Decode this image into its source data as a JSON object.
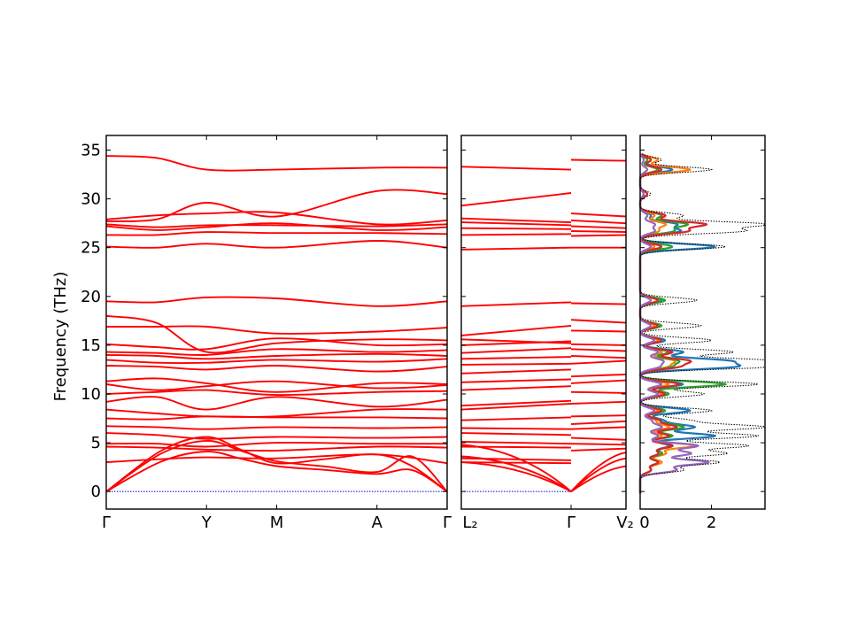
{
  "chart_data": {
    "type": "line",
    "ylabel": "Frequency (THz)",
    "ylim": [
      -1.8,
      36.5
    ],
    "yticks": [
      0,
      5,
      10,
      15,
      20,
      25,
      30,
      35
    ],
    "ytick_labels": [
      "0",
      "5",
      "10",
      "15",
      "20",
      "25",
      "30",
      "35"
    ],
    "colors": {
      "band": "#ff0000",
      "zero": "#0000cc",
      "dos_total": "#000000",
      "dos_partials": [
        "#1f77b4",
        "#ff7f0e",
        "#2ca02c",
        "#d62728",
        "#9467bd"
      ]
    },
    "panels": [
      {
        "id": "path1",
        "kpoints": [
          0,
          1,
          1.7,
          2.7,
          3.4
        ],
        "klabels": [
          "Γ",
          "Y",
          "M",
          "A",
          "Γ"
        ],
        "flat_bands": [
          [
            34.4,
            34.2,
            33.0,
            33.0,
            33.2,
            33.2
          ],
          [
            27.9,
            28.3,
            28.5,
            28.6,
            27.4,
            27.8
          ],
          [
            27.7,
            27.9,
            29.6,
            28.2,
            30.8,
            30.5
          ],
          [
            27.4,
            27.1,
            27.3,
            27.3,
            27.2,
            27.4
          ],
          [
            27.2,
            26.8,
            27.1,
            27.5,
            26.8,
            27.1
          ],
          [
            26.3,
            26.3,
            26.6,
            26.5,
            26.5,
            26.4
          ],
          [
            25.1,
            25.0,
            25.4,
            25.0,
            25.7,
            25.0
          ],
          [
            19.5,
            19.4,
            19.9,
            19.8,
            19.0,
            19.5
          ],
          [
            18.0,
            17.3,
            14.3,
            15.2,
            15.6,
            15.5
          ],
          [
            16.9,
            16.9,
            16.9,
            16.2,
            16.4,
            16.8
          ],
          [
            15.1,
            14.8,
            14.6,
            15.7,
            15.0,
            15.1
          ],
          [
            14.3,
            14.2,
            14.0,
            14.6,
            14.3,
            14.5
          ],
          [
            14.0,
            13.9,
            13.6,
            13.9,
            14.1,
            13.9
          ],
          [
            13.5,
            13.2,
            13.2,
            13.5,
            13.3,
            13.6
          ],
          [
            12.9,
            12.8,
            12.5,
            12.9,
            12.3,
            12.8
          ],
          [
            11.3,
            11.6,
            11.1,
            10.2,
            11.1,
            11.0
          ],
          [
            11.0,
            10.4,
            10.8,
            11.3,
            10.6,
            10.9
          ],
          [
            10.0,
            10.2,
            10.4,
            9.9,
            10.2,
            10.3
          ],
          [
            9.2,
            9.7,
            8.4,
            9.7,
            8.7,
            9.4
          ],
          [
            8.4,
            8.0,
            7.7,
            7.7,
            8.4,
            8.4
          ],
          [
            7.5,
            7.4,
            7.7,
            7.6,
            7.6,
            7.5
          ],
          [
            6.7,
            6.6,
            6.4,
            6.6,
            6.5,
            6.6
          ],
          [
            6.0,
            5.8,
            5.4,
            5.6,
            5.5,
            5.6
          ],
          [
            4.9,
            4.9,
            4.6,
            5.0,
            4.9,
            4.9
          ],
          [
            4.6,
            4.5,
            4.3,
            4.2,
            4.6,
            4.5
          ],
          [
            3.0,
            3.3,
            3.5,
            3.4,
            3.8,
            2.9
          ]
        ],
        "acoustic_bands": [
          [
            5.6,
            2.9,
            3.8,
            2.6
          ],
          [
            5.2,
            3.1,
            2.0,
            3.6
          ],
          [
            4.1,
            2.6,
            1.8,
            2.2
          ]
        ],
        "zero_line": 0
      },
      {
        "id": "path2",
        "kpoints": [
          0,
          1,
          1.5
        ],
        "klabels": [
          "L₂",
          "Γ",
          "V₂"
        ],
        "left_bands": [
          [
            33.3,
            33.0
          ],
          [
            29.3,
            30.6
          ],
          [
            28.0,
            27.6
          ],
          [
            27.6,
            27.3
          ],
          [
            27.0,
            26.9
          ],
          [
            26.3,
            26.4
          ],
          [
            24.8,
            25.0
          ],
          [
            19.0,
            19.4
          ],
          [
            16.0,
            17.0
          ],
          [
            15.6,
            15.2
          ],
          [
            15.0,
            15.4
          ],
          [
            14.2,
            14.7
          ],
          [
            13.6,
            13.8
          ],
          [
            13.0,
            13.1
          ],
          [
            12.1,
            12.5
          ],
          [
            11.2,
            11.5
          ],
          [
            10.4,
            10.8
          ],
          [
            8.8,
            9.3
          ],
          [
            8.4,
            9.0
          ],
          [
            7.3,
            7.6
          ],
          [
            6.5,
            6.4
          ],
          [
            6.0,
            5.8
          ],
          [
            5.1,
            4.9
          ],
          [
            4.6,
            4.5
          ],
          [
            3.4,
            3.2
          ],
          [
            3.0,
            2.9
          ]
        ],
        "right_bands": [
          [
            34.0,
            33.9
          ],
          [
            28.5,
            28.2
          ],
          [
            27.8,
            27.5
          ],
          [
            27.2,
            27.0
          ],
          [
            26.7,
            26.6
          ],
          [
            26.2,
            26.3
          ],
          [
            25.0,
            25.0
          ],
          [
            19.3,
            19.2
          ],
          [
            17.6,
            17.3
          ],
          [
            16.5,
            16.4
          ],
          [
            15.1,
            15.0
          ],
          [
            14.6,
            14.4
          ],
          [
            13.9,
            13.7
          ],
          [
            13.1,
            13.4
          ],
          [
            11.8,
            12.0
          ],
          [
            11.1,
            11.4
          ],
          [
            10.2,
            10.1
          ],
          [
            9.0,
            9.2
          ],
          [
            7.7,
            7.8
          ],
          [
            6.9,
            7.2
          ],
          [
            6.4,
            6.6
          ],
          [
            5.5,
            5.3
          ],
          [
            4.9,
            4.8
          ],
          [
            4.2,
            4.4
          ]
        ],
        "acoustic_left": [
          4.8,
          3.6,
          3.0
        ],
        "acoustic_right": [
          2.6,
          3.4,
          4.0
        ],
        "zero_line": 0
      },
      {
        "id": "dos",
        "xlim": [
          0,
          3.5
        ],
        "xticks": [
          0,
          2
        ],
        "xtick_labels": [
          "0",
          "2"
        ],
        "peaks": [
          {
            "f": 33.0,
            "total": 2.0,
            "parts": [
              0.9,
              1.4,
              0.5,
              0.6,
              0.2
            ]
          },
          {
            "f": 34.0,
            "total": 0.6,
            "parts": [
              0.3,
              0.5,
              0.2,
              0.3,
              0.1
            ]
          },
          {
            "f": 30.5,
            "total": 0.3,
            "parts": [
              0.1,
              0.2,
              0.1,
              0.2,
              0.1
            ]
          },
          {
            "f": 28.3,
            "total": 1.2,
            "parts": [
              0.3,
              0.4,
              0.6,
              0.7,
              0.2
            ]
          },
          {
            "f": 27.4,
            "total": 3.5,
            "parts": [
              1.0,
              0.7,
              1.3,
              1.8,
              0.4
            ]
          },
          {
            "f": 26.7,
            "total": 2.8,
            "parts": [
              1.1,
              0.5,
              0.9,
              1.3,
              0.4
            ]
          },
          {
            "f": 25.1,
            "total": 2.4,
            "parts": [
              2.1,
              0.4,
              0.9,
              0.6,
              0.3
            ]
          },
          {
            "f": 19.6,
            "total": 1.6,
            "parts": [
              0.6,
              0.5,
              0.7,
              0.5,
              0.3
            ]
          },
          {
            "f": 17.0,
            "total": 1.7,
            "parts": [
              0.5,
              0.4,
              0.6,
              0.5,
              0.3
            ]
          },
          {
            "f": 15.5,
            "total": 2.0,
            "parts": [
              0.7,
              0.5,
              0.6,
              0.6,
              0.4
            ]
          },
          {
            "f": 14.3,
            "total": 2.6,
            "parts": [
              1.2,
              0.6,
              0.8,
              0.9,
              0.5
            ]
          },
          {
            "f": 13.4,
            "total": 3.6,
            "parts": [
              2.3,
              0.9,
              1.0,
              1.3,
              0.6
            ]
          },
          {
            "f": 12.8,
            "total": 3.5,
            "parts": [
              2.5,
              0.7,
              0.8,
              1.0,
              0.5
            ]
          },
          {
            "f": 11.0,
            "total": 3.3,
            "parts": [
              1.2,
              0.8,
              2.4,
              1.1,
              0.6
            ]
          },
          {
            "f": 10.0,
            "total": 1.8,
            "parts": [
              0.7,
              0.6,
              0.8,
              0.7,
              0.5
            ]
          },
          {
            "f": 8.3,
            "total": 2.0,
            "parts": [
              1.4,
              0.5,
              0.7,
              0.6,
              0.4
            ]
          },
          {
            "f": 7.3,
            "total": 1.3,
            "parts": [
              0.6,
              0.4,
              0.5,
              0.5,
              0.3
            ]
          },
          {
            "f": 6.6,
            "total": 3.5,
            "parts": [
              1.5,
              0.8,
              1.2,
              1.0,
              0.6
            ]
          },
          {
            "f": 5.7,
            "total": 3.3,
            "parts": [
              2.1,
              0.6,
              0.9,
              0.8,
              0.5
            ]
          },
          {
            "f": 4.7,
            "total": 3.0,
            "parts": [
              0.8,
              1.5,
              0.9,
              0.9,
              1.6
            ]
          },
          {
            "f": 3.9,
            "total": 2.4,
            "parts": [
              0.6,
              0.7,
              0.6,
              0.5,
              1.4
            ]
          },
          {
            "f": 3.0,
            "total": 2.2,
            "parts": [
              0.5,
              0.6,
              0.5,
              0.5,
              1.9
            ]
          },
          {
            "f": 2.2,
            "total": 1.2,
            "parts": [
              0.3,
              0.3,
              0.3,
              0.3,
              1.0
            ]
          }
        ]
      }
    ]
  }
}
